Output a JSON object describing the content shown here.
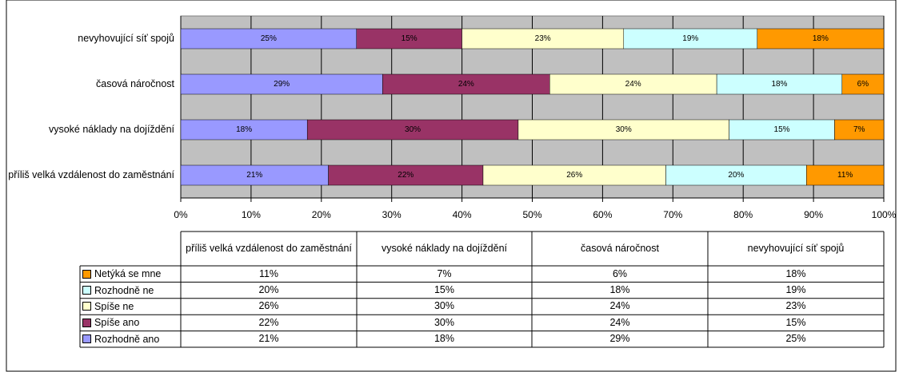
{
  "chart_data": {
    "type": "stacked_bar_100_horizontal",
    "categories": [
      "příliš velká vzdálenost do zaměstnání",
      "vysoké náklady na dojíždění",
      "časová náročnost",
      "nevyhovující síť spojů"
    ],
    "series": [
      {
        "name": "Rozhodně ano",
        "color": "#9999ff",
        "values": [
          21,
          18,
          29,
          25
        ],
        "value_labels": [
          "21%",
          "18%",
          "29%",
          "25%"
        ]
      },
      {
        "name": "Spíše ano",
        "color": "#993366",
        "values": [
          22,
          30,
          24,
          15
        ],
        "value_labels": [
          "22%",
          "30%",
          "24%",
          "15%"
        ]
      },
      {
        "name": "Spíše ne",
        "color": "#ffffcc",
        "values": [
          26,
          30,
          24,
          23
        ],
        "value_labels": [
          "26%",
          "30%",
          "24%",
          "23%"
        ]
      },
      {
        "name": "Rozhodně ne",
        "color": "#ccffff",
        "values": [
          20,
          15,
          18,
          19
        ],
        "value_labels": [
          "20%",
          "15%",
          "18%",
          "19%"
        ]
      },
      {
        "name": "Netýká se mne",
        "color": "#ff9900",
        "values": [
          11,
          7,
          6,
          18
        ],
        "value_labels": [
          "11%",
          "7%",
          "6%",
          "18%"
        ]
      }
    ],
    "xlim": [
      0,
      100
    ],
    "xticks": [
      {
        "value": 0,
        "label": "0%"
      },
      {
        "value": 10,
        "label": "10%"
      },
      {
        "value": 20,
        "label": "20%"
      },
      {
        "value": 30,
        "label": "30%"
      },
      {
        "value": 40,
        "label": "40%"
      },
      {
        "value": 50,
        "label": "50%"
      },
      {
        "value": 60,
        "label": "60%"
      },
      {
        "value": 70,
        "label": "70%"
      },
      {
        "value": 80,
        "label": "80%"
      },
      {
        "value": 90,
        "label": "90%"
      },
      {
        "value": 100,
        "label": "100%"
      }
    ],
    "grid": true,
    "plot_background": "#c0c0c0"
  }
}
